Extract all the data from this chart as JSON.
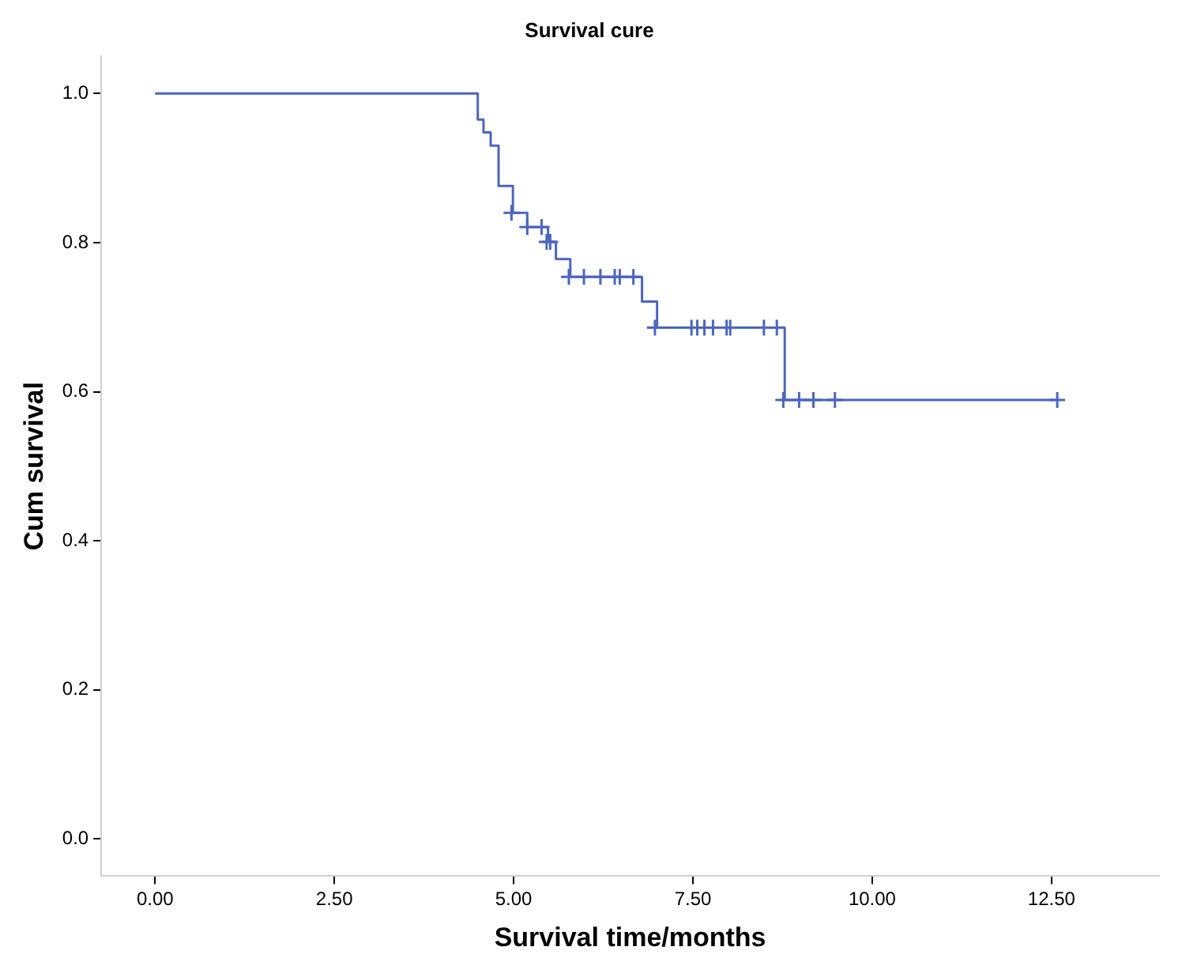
{
  "chart_data": {
    "type": "step",
    "title": "Survival cure",
    "xlabel": "Survival time/months",
    "ylabel": "Cum survival",
    "xlim": [
      -0.75,
      14
    ],
    "ylim": [
      -0.05,
      1.05
    ],
    "xticks": [
      {
        "value": 0,
        "label": "0.00"
      },
      {
        "value": 2.5,
        "label": "2.50"
      },
      {
        "value": 5,
        "label": "5.00"
      },
      {
        "value": 7.5,
        "label": "7.50"
      },
      {
        "value": 10,
        "label": "10.00"
      },
      {
        "value": 12.5,
        "label": "12.50"
      }
    ],
    "yticks": [
      {
        "value": 0,
        "label": "0.0"
      },
      0.2,
      0.4,
      0.6,
      0.8,
      {
        "value": 1,
        "label": "1.0"
      }
    ],
    "grid": false,
    "legend": false,
    "series": [
      {
        "type": "step",
        "color": "#4b66bf",
        "marker": "none",
        "x": [
          0,
          4.5,
          4.58,
          4.68,
          4.79,
          4.99,
          5.19,
          5.48,
          5.59,
          5.79,
          6.79,
          7.0,
          8.78,
          12.58
        ],
        "values": [
          1,
          0.965,
          0.948,
          0.93,
          0.876,
          0.84,
          0.821,
          0.801,
          0.778,
          0.754,
          0.721,
          0.686,
          0.589,
          0.589
        ]
      },
      {
        "type": "scatter",
        "color": "#4b66bf",
        "marker": "cross",
        "x": [
          4.97,
          5.19,
          5.39,
          5.46,
          5.51,
          5.77,
          5.98,
          6.21,
          6.41,
          6.48,
          6.67,
          6.97,
          7.48,
          7.56,
          7.66,
          7.78,
          7.97,
          8.02,
          8.49,
          8.67,
          8.76,
          8.98,
          9.18,
          9.48,
          12.58
        ],
        "values": [
          0.84,
          0.821,
          0.821,
          0.801,
          0.801,
          0.754,
          0.754,
          0.754,
          0.754,
          0.754,
          0.754,
          0.686,
          0.686,
          0.686,
          0.686,
          0.686,
          0.686,
          0.686,
          0.686,
          0.686,
          0.589,
          0.589,
          0.589,
          0.589,
          0.589
        ]
      }
    ]
  }
}
